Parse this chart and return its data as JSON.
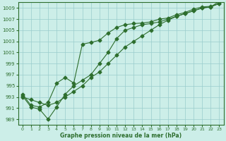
{
  "xlabel": "Graphe pression niveau de la mer (hPa)",
  "bg_color": "#cceee8",
  "grid_color": "#99cccc",
  "line_color": "#2d6e2d",
  "ylim": [
    988,
    1010
  ],
  "xlim": [
    -0.5,
    23.5
  ],
  "yticks": [
    989,
    991,
    993,
    995,
    997,
    999,
    1001,
    1003,
    1005,
    1007,
    1009
  ],
  "xticks": [
    0,
    1,
    2,
    3,
    4,
    5,
    6,
    7,
    8,
    9,
    10,
    11,
    12,
    13,
    14,
    15,
    16,
    17,
    18,
    19,
    20,
    21,
    22,
    23
  ],
  "series1": {
    "x": [
      0,
      1,
      2,
      3,
      4,
      5,
      6,
      7,
      8,
      9,
      10,
      11,
      12,
      13,
      14,
      15,
      16,
      17,
      18,
      19,
      20,
      21,
      22,
      23
    ],
    "y": [
      993.0,
      992.5,
      992.0,
      991.5,
      992.0,
      993.0,
      994.0,
      995.0,
      996.5,
      997.5,
      999.0,
      1000.5,
      1002.0,
      1003.0,
      1004.0,
      1005.0,
      1006.0,
      1006.8,
      1007.5,
      1008.0,
      1008.5,
      1009.0,
      1009.2,
      1009.8
    ]
  },
  "series2": {
    "x": [
      0,
      1,
      2,
      3,
      4,
      5,
      6,
      7,
      8,
      9,
      10,
      11,
      12,
      13,
      14,
      15,
      16,
      17,
      18,
      19,
      20,
      21,
      22,
      23
    ],
    "y": [
      993.5,
      991.5,
      991.2,
      992.0,
      995.5,
      996.5,
      995.5,
      1002.5,
      1002.8,
      1003.2,
      1004.5,
      1005.5,
      1006.0,
      1006.2,
      1006.3,
      1006.5,
      1007.0,
      1007.2,
      1007.8,
      1008.2,
      1008.8,
      1009.2,
      1009.3,
      1009.8
    ]
  },
  "series3": {
    "x": [
      0,
      1,
      2,
      3,
      4,
      5,
      6,
      7,
      8,
      9,
      10,
      11,
      12,
      13,
      14,
      15,
      16,
      17,
      18,
      19,
      20,
      21,
      22,
      23
    ],
    "y": [
      993.2,
      991.2,
      990.8,
      989.0,
      991.2,
      993.5,
      995.0,
      996.0,
      997.0,
      999.0,
      1001.0,
      1003.5,
      1005.0,
      1005.5,
      1006.0,
      1006.2,
      1006.5,
      1007.0,
      1007.5,
      1008.0,
      1008.5,
      1009.0,
      1009.2,
      1010.2
    ]
  }
}
